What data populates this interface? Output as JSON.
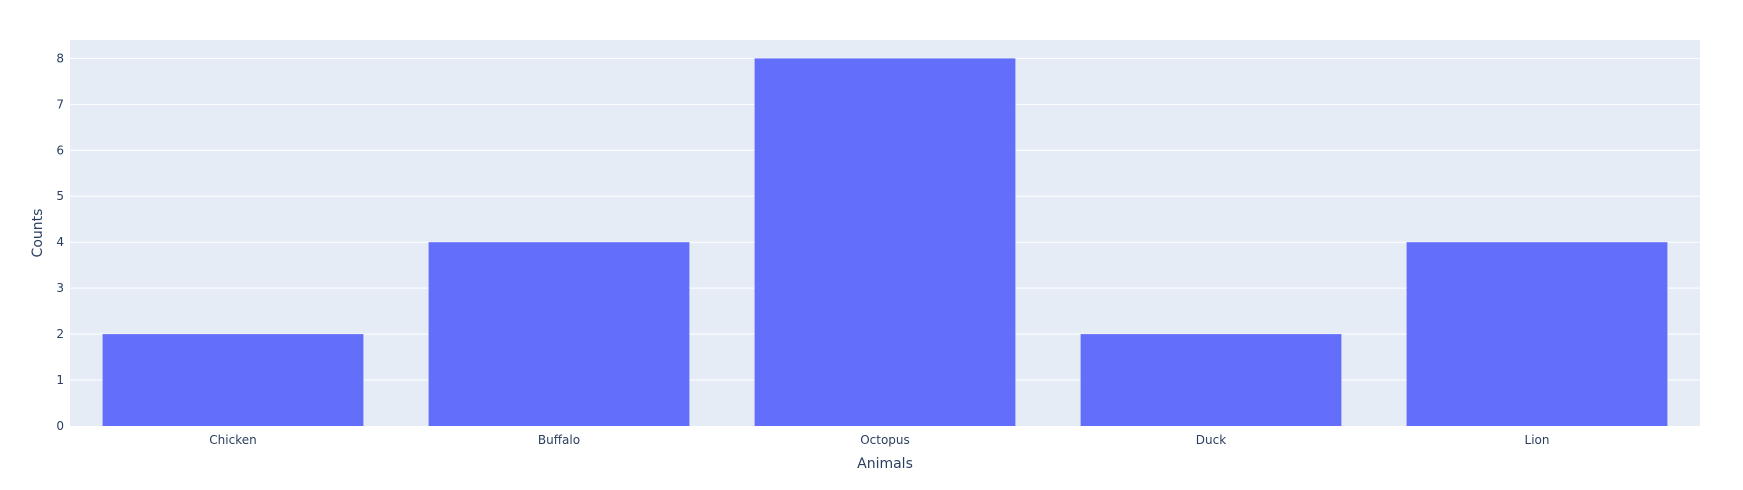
{
  "chart_data": {
    "type": "bar",
    "categories": [
      "Chicken",
      "Buffalo",
      "Octopus",
      "Duck",
      "Lion"
    ],
    "values": [
      2,
      4,
      8,
      2,
      4
    ],
    "xlabel": "Animals",
    "ylabel": "Counts",
    "ylim": [
      0,
      8.4
    ],
    "yticks": [
      0,
      1,
      2,
      3,
      4,
      5,
      6,
      7,
      8
    ],
    "grid": true,
    "colors": {
      "plot_background": "#E5ECF6",
      "bar": "#636EFA",
      "gridline": "#FFFFFF",
      "text": "#2A3F5F"
    }
  }
}
